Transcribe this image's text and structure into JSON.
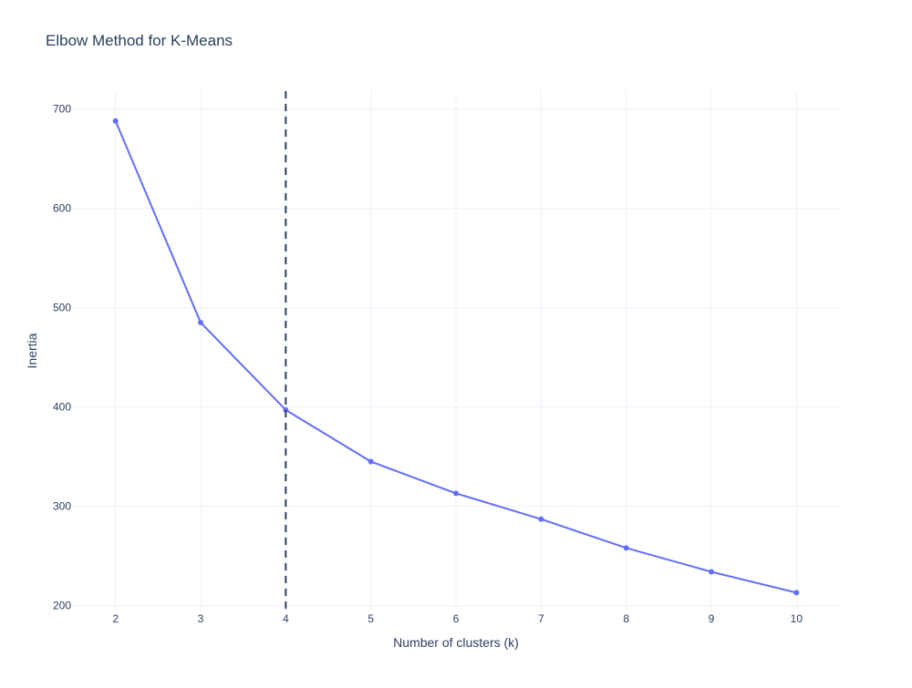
{
  "chart_data": {
    "type": "line",
    "title": "Elbow Method for K-Means",
    "xlabel": "Number of clusters (k)",
    "ylabel": "Inertia",
    "x": [
      2,
      3,
      4,
      5,
      6,
      7,
      8,
      9,
      10
    ],
    "series": [
      {
        "values": [
          688,
          485,
          397,
          345,
          313,
          287,
          258,
          234,
          213
        ],
        "color": "#636efa",
        "mode": "lines+markers"
      }
    ],
    "xlim": [
      1.5,
      10.5
    ],
    "ylim": [
      195,
      718
    ],
    "xticks": [
      2,
      3,
      4,
      5,
      6,
      7,
      8,
      9,
      10
    ],
    "yticks": [
      200,
      300,
      400,
      500,
      600,
      700
    ],
    "grid": true,
    "reference_line": {
      "orientation": "vertical",
      "x": 4,
      "style": "dashed",
      "color": "#2a3f5f"
    },
    "colors": {
      "background": "#ffffff",
      "grid": "#ebf0f8",
      "text": "#2a3f5f",
      "line": "#636efa"
    }
  }
}
